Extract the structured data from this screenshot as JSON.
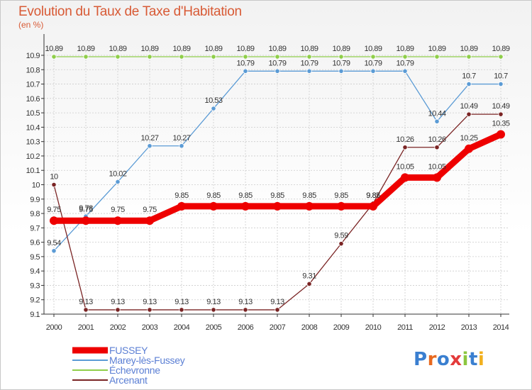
{
  "title": "Evolution du Taux de Taxe d'Habitation",
  "subtitle": "(en %)",
  "logo_text": "Proxiti",
  "colors": {
    "title": "#d85a35",
    "grid": "#cccccc",
    "axis": "#333333"
  },
  "chart_data": {
    "type": "line",
    "x": [
      "2000",
      "2001",
      "2002",
      "2003",
      "2004",
      "2005",
      "2006",
      "2007",
      "2008",
      "2009",
      "2010",
      "2011",
      "2012",
      "2013",
      "2014"
    ],
    "ylim": [
      9.1,
      10.9
    ],
    "yticks": [
      "9.1",
      "9.2",
      "9.3",
      "9.4",
      "9.5",
      "9.6",
      "9.7",
      "9.8",
      "9.9",
      "10",
      "10.1",
      "10.2",
      "10.3",
      "10.4",
      "10.5",
      "10.6",
      "10.7",
      "10.8",
      "10.9"
    ],
    "grid": true,
    "legend_position": "bottom-left",
    "series": [
      {
        "name": "Échevronne",
        "color": "#8fce4a",
        "values": [
          10.89,
          10.89,
          10.89,
          10.89,
          10.89,
          10.89,
          10.89,
          10.89,
          10.89,
          10.89,
          10.89,
          10.89,
          10.89,
          10.89,
          10.89
        ],
        "labels": [
          "10.89",
          "10.89",
          "10.89",
          "10.89",
          "10.89",
          "10.89",
          "10.89",
          "10.89",
          "10.89",
          "10.89",
          "10.89",
          "10.89",
          "10.89",
          "10.89",
          "10.89"
        ]
      },
      {
        "name": "Marey-lès-Fussey",
        "color": "#5b9bd5",
        "values": [
          9.54,
          9.78,
          10.02,
          10.27,
          10.27,
          10.53,
          10.79,
          10.79,
          10.79,
          10.79,
          10.79,
          10.79,
          10.44,
          10.7,
          10.7
        ],
        "labels": [
          "9.54",
          "9.78",
          "10.02",
          "10.27",
          "10.27",
          "10.53",
          "10.79",
          "10.79",
          "10.79",
          "10.79",
          "10.79",
          "10.79",
          "10.44",
          "10.7",
          "10.7"
        ]
      },
      {
        "name": "Arcenant",
        "color": "#7a2424",
        "values": [
          10,
          9.13,
          9.13,
          9.13,
          9.13,
          9.13,
          9.13,
          9.13,
          9.31,
          9.59,
          9.87,
          10.26,
          10.26,
          10.49,
          10.49
        ],
        "labels": [
          "10",
          "9.13",
          "9.13",
          "9.13",
          "9.13",
          "9.13",
          "9.13",
          "9.13",
          "9.31",
          "9.59",
          "9.87",
          "10.26",
          "10.26",
          "10.49",
          "10.49"
        ]
      },
      {
        "name": "FUSSEY",
        "color": "#ee0000",
        "values": [
          9.75,
          9.75,
          9.75,
          9.75,
          9.85,
          9.85,
          9.85,
          9.85,
          9.85,
          9.85,
          9.85,
          10.05,
          10.05,
          10.25,
          10.35
        ],
        "labels": [
          "9.75",
          "9.75",
          "9.75",
          "9.75",
          "9.85",
          "9.85",
          "9.85",
          "9.85",
          "9.85",
          "9.85",
          "9.85",
          "10.05",
          "10.05",
          "10.25",
          "10.35"
        ]
      }
    ],
    "legend": [
      {
        "name": "FUSSEY",
        "color": "#ee0000",
        "text_color": "#5b7fd4"
      },
      {
        "name": "Marey-lès-Fussey",
        "color": "#5b9bd5",
        "text_color": "#5b7fd4"
      },
      {
        "name": "Échevronne",
        "color": "#8fce4a",
        "text_color": "#5b7fd4"
      },
      {
        "name": "Arcenant",
        "color": "#7a2424",
        "text_color": "#5b7fd4"
      }
    ]
  }
}
